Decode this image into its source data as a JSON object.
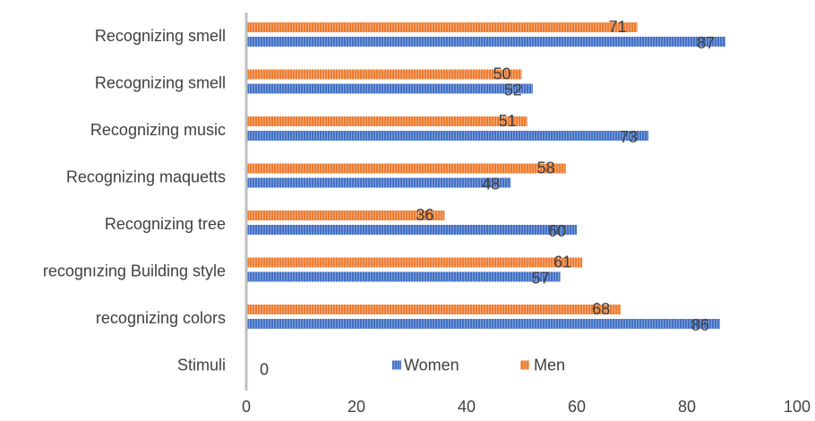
{
  "chart_data": {
    "type": "bar",
    "orientation": "horizontal",
    "categories": [
      "Recognizing smell",
      "Recognizing smell",
      "Recognizing music",
      "Recognizing maquetts",
      "Recognizing tree",
      "recognızing Building style",
      "recognizing colors",
      "Stimuli"
    ],
    "series": [
      {
        "name": "Women",
        "values": [
          87,
          52,
          73,
          48,
          60,
          57,
          86,
          0
        ],
        "color": "#4472C4"
      },
      {
        "name": "Men",
        "values": [
          71,
          50,
          51,
          58,
          36,
          61,
          68,
          0
        ],
        "color": "#ED7D31"
      }
    ],
    "data_labels": {
      "Women": [
        "87",
        "52",
        "73",
        "48",
        "60",
        "57",
        "86",
        "0"
      ],
      "Men": [
        "71",
        "50",
        "51",
        "58",
        "36",
        "61",
        "68",
        ""
      ]
    },
    "xlim": [
      0,
      100
    ],
    "xticks": [
      "0",
      "20",
      "40",
      "60",
      "80",
      "100"
    ],
    "grid": false,
    "legend": {
      "placement": "inside-bottom",
      "entries": [
        "Women",
        "Men"
      ]
    },
    "bar_pattern": "vertical-stripes"
  }
}
